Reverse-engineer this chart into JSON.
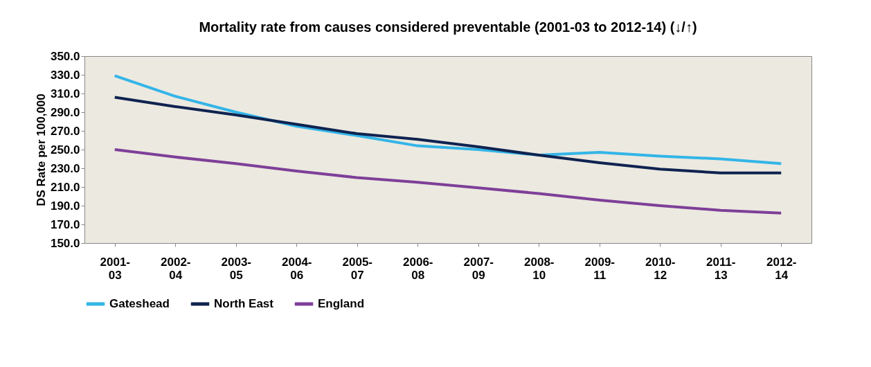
{
  "chart_data": {
    "type": "line",
    "title": "Mortality rate from causes considered preventable (2001-03 to 2012-14) (↓/↑)",
    "ylabel": "DS Rate per 100,000",
    "categories": [
      "2001-03",
      "2002-04",
      "2003-05",
      "2004-06",
      "2005-07",
      "2006-08",
      "2007-09",
      "2008-10",
      "2009-11",
      "2010-12",
      "2011-13",
      "2012-14"
    ],
    "series": [
      {
        "name": "Gateshead",
        "color": "#33b5e8",
        "values": [
          329,
          307,
          290,
          275,
          265,
          254,
          250,
          244,
          247,
          243,
          240,
          235
        ]
      },
      {
        "name": "North East",
        "color": "#0f2350",
        "values": [
          306,
          296,
          287,
          277,
          267,
          261,
          253,
          244,
          236,
          229,
          225,
          225
        ]
      },
      {
        "name": "England",
        "color": "#7e3f98",
        "values": [
          250,
          242,
          235,
          227,
          220,
          215,
          209,
          203,
          196,
          190,
          185,
          182
        ]
      }
    ],
    "ylim": [
      150,
      350
    ],
    "yticks": [
      {
        "value": 150,
        "label": "150.0"
      },
      {
        "value": 170,
        "label": "170.0"
      },
      {
        "value": 190,
        "label": "190.0"
      },
      {
        "value": 210,
        "label": "210.0"
      },
      {
        "value": 230,
        "label": "230.0"
      },
      {
        "value": 250,
        "label": "250.0"
      },
      {
        "value": 270,
        "label": "270.0"
      },
      {
        "value": 290,
        "label": "290.0"
      },
      {
        "value": 310,
        "label": "310.0"
      },
      {
        "value": 330,
        "label": "330.0"
      },
      {
        "value": 350,
        "label": "350.0"
      }
    ],
    "grid": false,
    "legend": "bottom",
    "marker": "none",
    "line_style": "solid"
  }
}
